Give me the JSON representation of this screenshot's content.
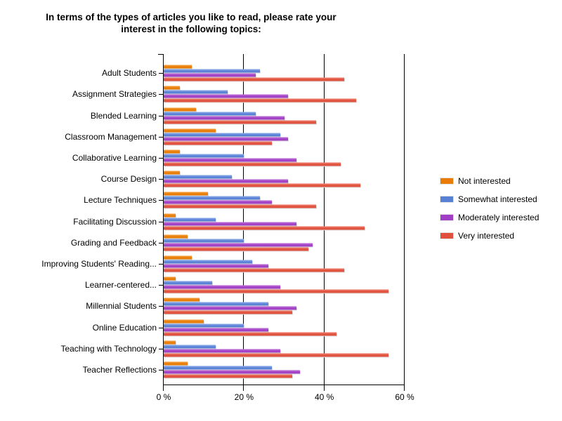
{
  "page": {
    "background": "#ffffff"
  },
  "chart_data": {
    "type": "bar",
    "orientation": "horizontal",
    "title": "In terms of the types of articles you like to read, please rate your interest in the following topics:",
    "categories": [
      "Adult Students",
      "Assignment Strategies",
      "Blended Learning",
      "Classroom Management",
      "Collaborative Learning",
      "Course Design",
      "Lecture Techniques",
      "Facilitating Discussion",
      "Grading and Feedback",
      "Improving Students' Reading...",
      "Learner-centered...",
      "Millennial Students",
      "Online Education",
      "Teaching with Technology",
      "Teacher Reflections"
    ],
    "series": [
      {
        "name": "Not interested",
        "color": "#E87C04",
        "color_light": "#F5A142",
        "values": [
          7,
          4,
          8,
          13,
          4,
          4,
          11,
          3,
          6,
          7,
          3,
          9,
          10,
          3,
          6
        ]
      },
      {
        "name": "Somewhat interested",
        "color": "#5881D6",
        "color_light": "#8FACE8",
        "values": [
          24,
          16,
          23,
          29,
          20,
          17,
          24,
          13,
          20,
          22,
          12,
          26,
          20,
          13,
          27
        ]
      },
      {
        "name": "Moderately interested",
        "color": "#A13FC4",
        "color_light": "#BE74D9",
        "values": [
          23,
          31,
          30,
          31,
          33,
          31,
          27,
          33,
          37,
          26,
          29,
          33,
          26,
          29,
          34
        ]
      },
      {
        "name": "Very interested",
        "color": "#E0503C",
        "color_light": "#ED8373",
        "values": [
          45,
          48,
          38,
          27,
          44,
          49,
          38,
          50,
          36,
          45,
          56,
          32,
          43,
          56,
          32
        ]
      }
    ],
    "x_axis": {
      "min": 0,
      "max": 60,
      "ticks": [
        {
          "value": 0,
          "label": "0 %"
        },
        {
          "value": 20,
          "label": "20 %"
        },
        {
          "value": 40,
          "label": "40 %"
        },
        {
          "value": 60,
          "label": "60 %"
        }
      ]
    },
    "gridlines": [
      20,
      40,
      60
    ],
    "legend_position": "right",
    "axis_color": "#000000"
  }
}
